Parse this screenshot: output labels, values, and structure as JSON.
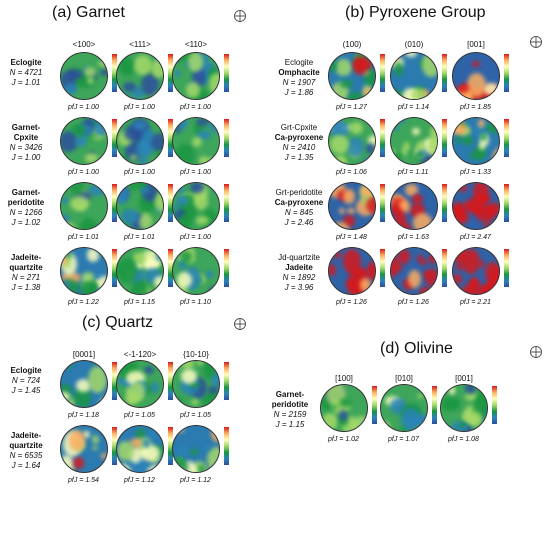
{
  "panels": {
    "garnet": {
      "title": "(a) Garnet",
      "cols": [
        "<100>",
        "<111>",
        "<110>"
      ],
      "rows": [
        {
          "name": "Eclogite",
          "n": "N = 4721",
          "j": "J = 1.01",
          "pfj": [
            "pfJ = 1.00",
            "pfJ = 1.00",
            "pfJ = 1.00"
          ]
        },
        {
          "name": "Garnet-",
          "name2": "Cpxite",
          "n": "N = 3426",
          "j": "J = 1.00",
          "pfj": [
            "pfJ = 1.00",
            "pfJ = 1.00",
            "pfJ = 1.00"
          ]
        },
        {
          "name": "Garnet-",
          "name2": "peridotite",
          "n": "N = 1266",
          "j": "J = 1.02",
          "pfj": [
            "pfJ = 1.01",
            "pfJ = 1.01",
            "pfJ = 1.00"
          ]
        },
        {
          "name": "Jadeite-",
          "name2": "quartzite",
          "n": "N = 271",
          "j": "J = 1.38",
          "pfj": [
            "pfJ = 1.22",
            "pfJ = 1.15",
            "pfJ = 1.10"
          ]
        }
      ]
    },
    "pyroxene": {
      "title": "(b) Pyroxene Group",
      "cols": [
        "(100)",
        "(010)",
        "[001]"
      ],
      "rows": [
        {
          "name": "Eclogite",
          "name2": "Omphacite",
          "n": "N = 1907",
          "j": "J = 1.86",
          "pfj": [
            "pfJ = 1.27",
            "pfJ = 1.14",
            "pfJ = 1.85"
          ]
        },
        {
          "name": "Grt-Cpxite",
          "name2": "Ca-pyroxene",
          "n": "N = 2410",
          "j": "J = 1.35",
          "pfj": [
            "pfJ = 1.06",
            "pfJ = 1.11",
            "pfJ = 1.33"
          ]
        },
        {
          "name": "Grt-peridotite",
          "name2": "Ca-pyroxene",
          "n": "N = 845",
          "j": "J = 2.46",
          "pfj": [
            "pfJ = 1.48",
            "pfJ = 1.63",
            "pfJ = 2.47"
          ]
        },
        {
          "name": "Jd-quartzite",
          "name2": "Jadeite",
          "n": "N = 1892",
          "j": "J = 3.96",
          "pfj": [
            "pfJ = 1.26",
            "pfJ = 1.26",
            "pfJ = 2.21"
          ]
        }
      ]
    },
    "quartz": {
      "title": "(c) Quartz",
      "cols": [
        "[0001]",
        "<-1-120>",
        "{10-10}"
      ],
      "rows": [
        {
          "name": "Eclogite",
          "n": "N = 724",
          "j": "J = 1.45",
          "pfj": [
            "pfJ = 1.18",
            "pfJ = 1.05",
            "pfJ = 1.05"
          ]
        },
        {
          "name": "Jadeite-",
          "name2": "quartzite",
          "n": "N = 6535",
          "j": "J = 1.64",
          "pfj": [
            "pfJ = 1.54",
            "pfJ = 1.12",
            "pfJ = 1.12"
          ]
        }
      ]
    },
    "olivine": {
      "title": "(d) Olivine",
      "cols": [
        "[100]",
        "[010]",
        "[001]"
      ],
      "rows": [
        {
          "name": "Garnet-",
          "name2": "peridotite",
          "n": "N = 2159",
          "j": "J = 1.15",
          "pfj": [
            "pfJ = 1.02",
            "pfJ = 1.07",
            "pfJ = 1.08"
          ]
        }
      ]
    }
  },
  "compass_labels": {
    "z": "Z",
    "x": "X"
  },
  "colors": {
    "low": "#2c4f9e",
    "mid": "#1a9641",
    "high": "#fdae61",
    "max": "#d7191c"
  }
}
